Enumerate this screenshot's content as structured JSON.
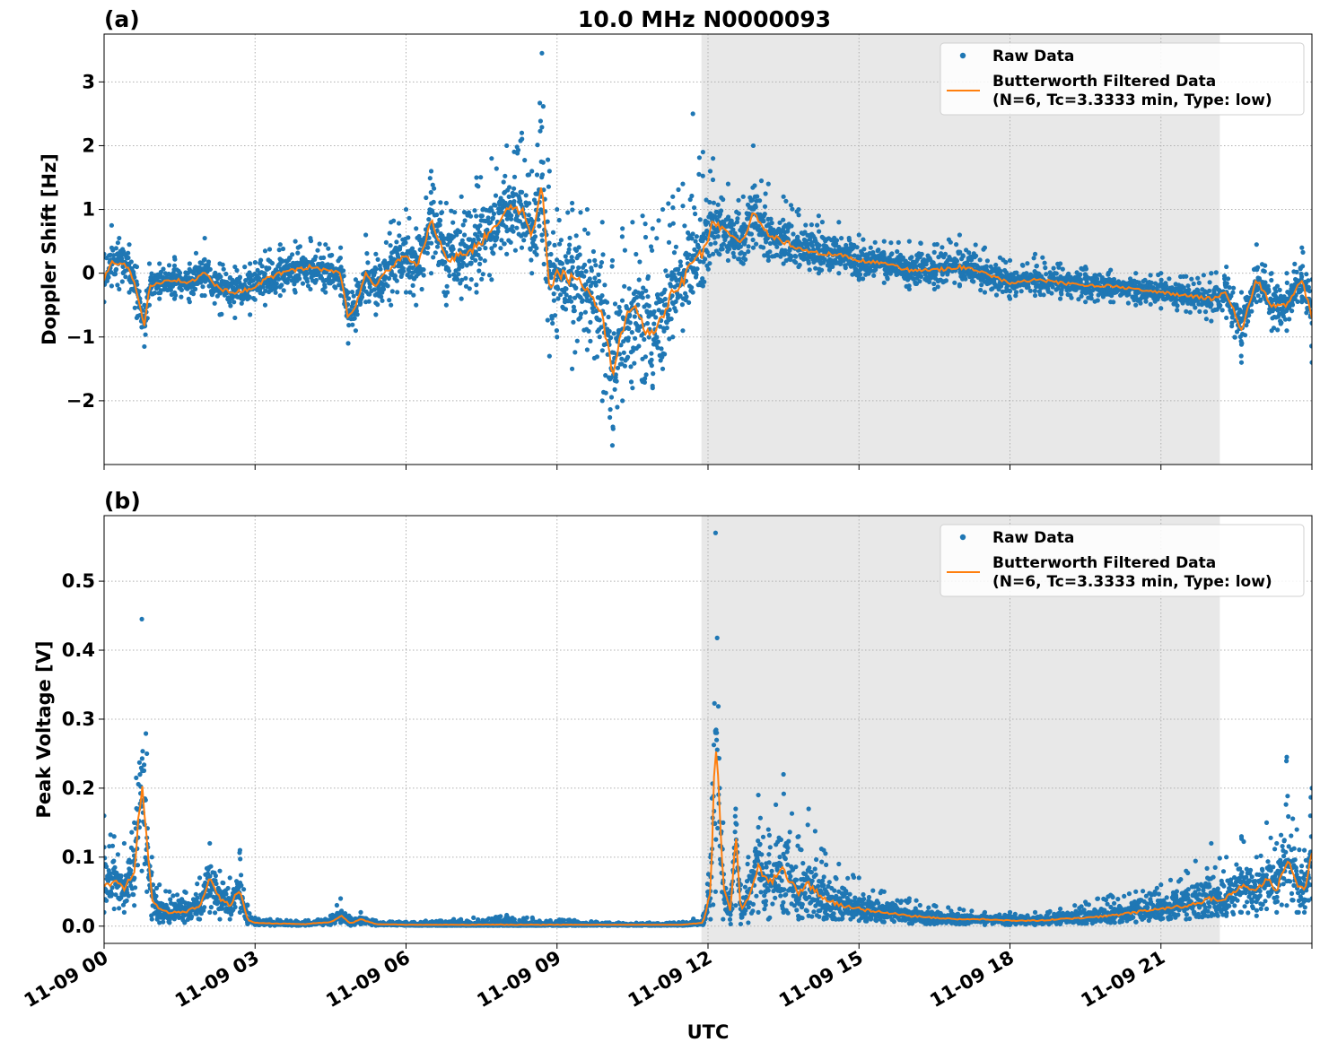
{
  "figure": {
    "title": "10.0 MHz N0000093",
    "xlabel": "UTC"
  },
  "chart_data": [
    {
      "type": "scatter",
      "panel_label": "(a)",
      "ylabel": "Doppler Shift [Hz]",
      "xlim": [
        0,
        24
      ],
      "ylim": [
        -3.0,
        3.75
      ],
      "yticks": [
        3,
        2,
        1,
        0,
        -1,
        -2
      ],
      "ytick_labels": [
        "3",
        "2",
        "1",
        "0",
        "−1",
        "−2"
      ],
      "xticks": [
        0,
        3,
        6,
        9,
        12,
        15,
        18,
        21
      ],
      "xtick_labels": [
        "11-09 00",
        "11-09 03",
        "11-09 06",
        "11-09 09",
        "11-09 12",
        "11-09 15",
        "11-09 18",
        "11-09 21"
      ],
      "grid": true,
      "shaded_interval": [
        11.87,
        22.17
      ],
      "legend": {
        "position": "upper right",
        "raw_label": "Raw Data",
        "filtered_label_line1": "Butterworth Filtered Data",
        "filtered_label_line2": "(N=6, Tc=3.3333 min, Type: low)"
      },
      "series": [
        {
          "name": "Butterworth Filtered Data",
          "kind": "line",
          "color": "#ff7f0e",
          "x": [
            0.0,
            0.15,
            0.3,
            0.5,
            0.65,
            0.8,
            0.9,
            1.1,
            1.4,
            1.7,
            2.0,
            2.3,
            2.6,
            2.9,
            3.2,
            3.5,
            3.8,
            4.1,
            4.4,
            4.7,
            4.85,
            5.0,
            5.2,
            5.4,
            5.7,
            6.0,
            6.2,
            6.5,
            6.8,
            7.1,
            7.4,
            7.7,
            8.0,
            8.3,
            8.5,
            8.7,
            8.85,
            9.0,
            9.3,
            9.6,
            9.9,
            10.1,
            10.3,
            10.5,
            10.7,
            10.9,
            11.1,
            11.3,
            11.5,
            11.7,
            11.9,
            12.1,
            12.4,
            12.7,
            12.9,
            13.2,
            13.5,
            13.8,
            14.2,
            14.6,
            15.0,
            15.5,
            16.0,
            16.5,
            17.0,
            17.5,
            18.0,
            18.5,
            19.0,
            19.5,
            20.0,
            20.5,
            21.0,
            21.5,
            22.0,
            22.3,
            22.6,
            22.9,
            23.2,
            23.5,
            23.8,
            24.0
          ],
          "y": [
            -0.1,
            0.2,
            0.15,
            0.1,
            -0.3,
            -0.85,
            -0.2,
            -0.15,
            -0.1,
            -0.15,
            0.0,
            -0.25,
            -0.3,
            -0.25,
            -0.1,
            0.0,
            0.05,
            0.1,
            0.05,
            0.0,
            -0.7,
            -0.5,
            0.0,
            -0.2,
            0.1,
            0.3,
            0.1,
            0.8,
            0.2,
            0.3,
            0.4,
            0.7,
            1.0,
            1.0,
            0.6,
            1.4,
            -0.2,
            0.0,
            -0.1,
            -0.2,
            -0.7,
            -1.6,
            -0.9,
            -0.5,
            -0.8,
            -1.0,
            -0.7,
            -0.3,
            -0.15,
            0.2,
            0.3,
            0.8,
            0.6,
            0.5,
            1.0,
            0.6,
            0.5,
            0.4,
            0.3,
            0.3,
            0.2,
            0.15,
            0.05,
            0.05,
            0.1,
            0.0,
            -0.15,
            -0.1,
            -0.15,
            -0.2,
            -0.2,
            -0.25,
            -0.3,
            -0.35,
            -0.4,
            -0.3,
            -0.9,
            -0.1,
            -0.5,
            -0.5,
            -0.1,
            -0.7
          ]
        },
        {
          "name": "Raw Data",
          "kind": "points",
          "color": "#1f77b4",
          "x": [
            0.0,
            0.15,
            0.3,
            0.5,
            0.65,
            0.8,
            0.9,
            1.1,
            1.4,
            1.7,
            2.0,
            2.3,
            2.6,
            2.9,
            3.2,
            3.5,
            3.8,
            4.1,
            4.4,
            4.7,
            4.85,
            5.0,
            5.2,
            5.4,
            5.7,
            6.0,
            6.2,
            6.5,
            6.8,
            7.1,
            7.4,
            7.7,
            8.0,
            8.3,
            8.5,
            8.7,
            8.85,
            9.0,
            9.3,
            9.6,
            9.9,
            10.1,
            10.3,
            10.5,
            10.7,
            10.9,
            11.1,
            11.3,
            11.5,
            11.7,
            11.9,
            12.1,
            12.4,
            12.7,
            12.9,
            13.2,
            13.5,
            13.8,
            14.2,
            14.6,
            15.0,
            15.5,
            16.0,
            16.5,
            17.0,
            17.5,
            18.0,
            18.5,
            19.0,
            19.5,
            20.0,
            20.5,
            21.0,
            21.5,
            22.0,
            22.3,
            22.6,
            22.9,
            23.2,
            23.5,
            23.8,
            24.0
          ],
          "low": [
            -0.45,
            -0.2,
            -0.25,
            -0.3,
            -0.7,
            -1.15,
            -0.5,
            -0.4,
            -0.4,
            -0.45,
            -0.35,
            -0.65,
            -0.7,
            -0.65,
            -0.5,
            -0.35,
            -0.3,
            -0.25,
            -0.3,
            -0.35,
            -1.1,
            -0.9,
            -0.45,
            -0.65,
            -0.5,
            -0.3,
            -0.5,
            0.0,
            -0.5,
            -0.4,
            -0.3,
            -0.1,
            0.3,
            0.4,
            0.0,
            0.6,
            -1.3,
            -1.0,
            -1.5,
            -1.2,
            -2.0,
            -2.7,
            -2.0,
            -1.8,
            -1.7,
            -1.8,
            -1.5,
            -1.0,
            -0.9,
            -0.3,
            -0.2,
            0.3,
            0.2,
            0.15,
            0.4,
            0.2,
            0.15,
            0.1,
            0.0,
            0.0,
            -0.1,
            -0.15,
            -0.25,
            -0.25,
            -0.2,
            -0.3,
            -0.4,
            -0.35,
            -0.4,
            -0.45,
            -0.45,
            -0.5,
            -0.55,
            -0.6,
            -0.75,
            -0.7,
            -1.4,
            -0.45,
            -0.9,
            -0.9,
            -0.45,
            -1.4
          ],
          "high": [
            0.3,
            0.75,
            0.55,
            0.45,
            0.1,
            -0.5,
            0.15,
            0.15,
            0.25,
            0.15,
            0.55,
            0.15,
            0.1,
            0.15,
            0.35,
            0.45,
            0.5,
            0.55,
            0.45,
            0.4,
            -0.3,
            -0.1,
            0.6,
            0.3,
            0.8,
            1.0,
            0.7,
            1.6,
            1.1,
            1.2,
            1.5,
            1.8,
            2.0,
            2.2,
            1.6,
            3.45,
            1.6,
            1.0,
            1.1,
            1.0,
            0.8,
            0.2,
            0.7,
            0.8,
            0.9,
            0.7,
            1.0,
            1.2,
            1.4,
            2.5,
            1.9,
            1.8,
            1.4,
            1.2,
            2.0,
            1.4,
            1.2,
            1.0,
            0.9,
            0.8,
            0.6,
            0.5,
            0.5,
            0.45,
            0.6,
            0.4,
            0.2,
            0.3,
            0.15,
            0.1,
            0.05,
            0.0,
            0.0,
            -0.05,
            0.0,
            0.1,
            -0.3,
            0.45,
            0.0,
            0.0,
            0.4,
            -0.1
          ]
        }
      ]
    },
    {
      "type": "scatter",
      "panel_label": "(b)",
      "ylabel": "Peak Voltage [V]",
      "xlim": [
        0,
        24
      ],
      "ylim": [
        -0.025,
        0.595
      ],
      "yticks": [
        0.0,
        0.1,
        0.2,
        0.3,
        0.4,
        0.5
      ],
      "ytick_labels": [
        "0.0",
        "0.1",
        "0.2",
        "0.3",
        "0.4",
        "0.5"
      ],
      "xticks": [
        0,
        3,
        6,
        9,
        12,
        15,
        18,
        21
      ],
      "xtick_labels": [
        "11-09 00",
        "11-09 03",
        "11-09 06",
        "11-09 09",
        "11-09 12",
        "11-09 15",
        "11-09 18",
        "11-09 21"
      ],
      "grid": true,
      "shaded_interval": [
        11.87,
        22.17
      ],
      "legend": {
        "position": "upper right",
        "raw_label": "Raw Data",
        "filtered_label_line1": "Butterworth Filtered Data",
        "filtered_label_line2": "(N=6, Tc=3.3333 min, Type: low)"
      },
      "series": [
        {
          "name": "Butterworth Filtered Data",
          "kind": "line",
          "color": "#ff7f0e",
          "x": [
            0.0,
            0.2,
            0.4,
            0.6,
            0.75,
            0.85,
            0.95,
            1.1,
            1.3,
            1.6,
            1.9,
            2.1,
            2.3,
            2.5,
            2.7,
            2.85,
            3.0,
            3.3,
            4.0,
            4.5,
            4.7,
            4.9,
            5.1,
            5.4,
            6.0,
            8.0,
            10.0,
            11.5,
            11.9,
            12.05,
            12.15,
            12.3,
            12.45,
            12.55,
            12.65,
            12.8,
            13.0,
            13.2,
            13.5,
            13.8,
            14.0,
            14.3,
            14.6,
            15.0,
            15.5,
            16.0,
            16.5,
            17.0,
            17.5,
            18.0,
            18.5,
            19.0,
            19.5,
            20.0,
            20.5,
            21.0,
            21.5,
            22.0,
            22.3,
            22.6,
            22.9,
            23.1,
            23.3,
            23.5,
            23.7,
            23.85,
            24.0
          ],
          "y": [
            0.06,
            0.065,
            0.055,
            0.08,
            0.21,
            0.12,
            0.04,
            0.025,
            0.02,
            0.02,
            0.03,
            0.07,
            0.04,
            0.03,
            0.055,
            0.01,
            0.005,
            0.004,
            0.003,
            0.006,
            0.015,
            0.004,
            0.01,
            0.003,
            0.002,
            0.002,
            0.002,
            0.002,
            0.005,
            0.05,
            0.28,
            0.06,
            0.02,
            0.14,
            0.02,
            0.04,
            0.09,
            0.06,
            0.08,
            0.05,
            0.06,
            0.04,
            0.03,
            0.025,
            0.02,
            0.015,
            0.012,
            0.01,
            0.01,
            0.008,
            0.008,
            0.01,
            0.012,
            0.015,
            0.02,
            0.025,
            0.03,
            0.04,
            0.04,
            0.06,
            0.05,
            0.07,
            0.05,
            0.1,
            0.06,
            0.05,
            0.11
          ]
        },
        {
          "name": "Raw Data",
          "kind": "points",
          "color": "#1f77b4",
          "x": [
            0.0,
            0.2,
            0.4,
            0.6,
            0.75,
            0.85,
            0.95,
            1.1,
            1.3,
            1.6,
            1.9,
            2.1,
            2.3,
            2.5,
            2.7,
            2.85,
            3.0,
            3.3,
            4.0,
            4.5,
            4.7,
            4.9,
            5.1,
            5.4,
            6.0,
            8.0,
            10.0,
            11.5,
            11.9,
            12.05,
            12.15,
            12.3,
            12.45,
            12.55,
            12.65,
            12.8,
            13.0,
            13.2,
            13.5,
            13.8,
            14.0,
            14.3,
            14.6,
            15.0,
            15.5,
            16.0,
            16.5,
            17.0,
            17.5,
            18.0,
            18.5,
            19.0,
            19.5,
            20.0,
            20.5,
            21.0,
            21.5,
            22.0,
            22.3,
            22.6,
            22.9,
            23.1,
            23.3,
            23.5,
            23.7,
            23.85,
            24.0
          ],
          "low": [
            0.02,
            0.025,
            0.02,
            0.03,
            0.08,
            0.05,
            0.01,
            0.005,
            0.005,
            0.005,
            0.01,
            0.02,
            0.01,
            0.01,
            0.02,
            0.003,
            0.002,
            0.001,
            0.001,
            0.002,
            0.005,
            0.001,
            0.003,
            0.001,
            0.001,
            0.001,
            0.001,
            0.001,
            0.002,
            0.01,
            0.05,
            0.01,
            0.003,
            0.03,
            0.003,
            0.005,
            0.02,
            0.01,
            0.02,
            0.01,
            0.015,
            0.01,
            0.01,
            0.008,
            0.006,
            0.004,
            0.003,
            0.003,
            0.002,
            0.002,
            0.002,
            0.003,
            0.004,
            0.005,
            0.006,
            0.01,
            0.01,
            0.015,
            0.015,
            0.02,
            0.015,
            0.025,
            0.02,
            0.03,
            0.02,
            0.02,
            0.04
          ],
          "high": [
            0.16,
            0.13,
            0.12,
            0.15,
            0.445,
            0.25,
            0.1,
            0.06,
            0.05,
            0.05,
            0.07,
            0.12,
            0.08,
            0.07,
            0.11,
            0.03,
            0.012,
            0.01,
            0.008,
            0.015,
            0.04,
            0.012,
            0.02,
            0.008,
            0.006,
            0.016,
            0.005,
            0.006,
            0.015,
            0.1,
            0.57,
            0.15,
            0.05,
            0.17,
            0.06,
            0.1,
            0.19,
            0.14,
            0.22,
            0.13,
            0.17,
            0.11,
            0.09,
            0.07,
            0.05,
            0.04,
            0.03,
            0.025,
            0.02,
            0.02,
            0.02,
            0.025,
            0.035,
            0.045,
            0.05,
            0.06,
            0.08,
            0.12,
            0.1,
            0.13,
            0.1,
            0.15,
            0.12,
            0.245,
            0.14,
            0.11,
            0.2
          ]
        }
      ]
    }
  ]
}
